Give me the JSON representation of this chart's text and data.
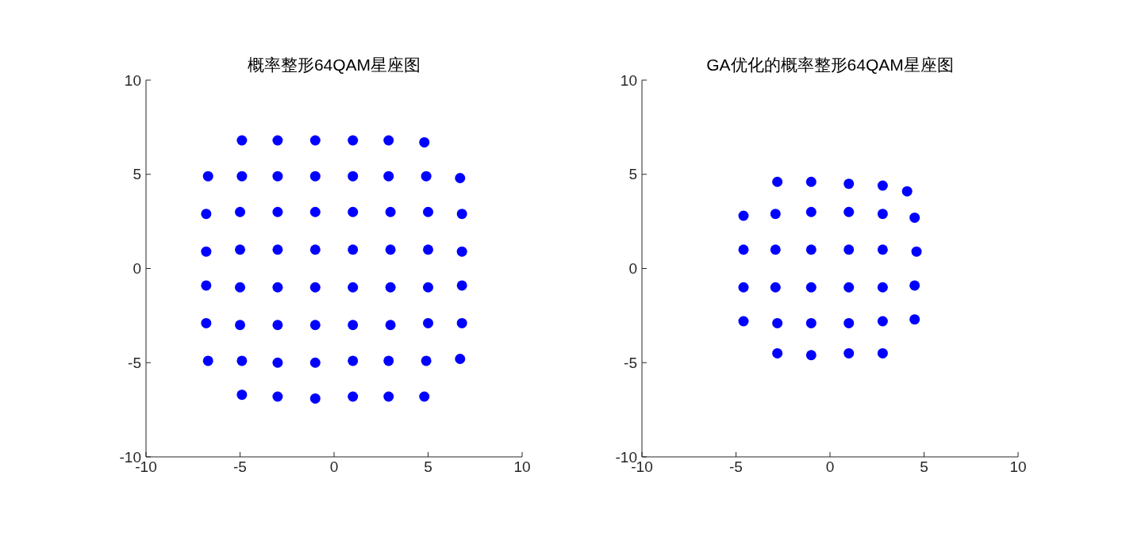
{
  "chart_data": [
    {
      "type": "scatter",
      "title": "概率整形64QAM星座图",
      "xlim": [
        -10,
        10
      ],
      "ylim": [
        -10,
        10
      ],
      "xticks": [
        -10,
        -5,
        0,
        5,
        10
      ],
      "yticks": [
        -10,
        -5,
        0,
        5,
        10
      ],
      "marker": "circle",
      "series": [
        {
          "color": "#0000ff",
          "x": [
            -4.9,
            -3,
            -1,
            1,
            2.9,
            4.8,
            -6.7,
            -4.9,
            -3,
            -1,
            1,
            2.9,
            4.9,
            6.7,
            -6.8,
            -5,
            -3,
            -1,
            1,
            3,
            5,
            6.8,
            -6.8,
            -5,
            -3,
            -1,
            1,
            3,
            5,
            6.8,
            -6.8,
            -5,
            -3,
            -1,
            1,
            3,
            5,
            6.8,
            -6.8,
            -5,
            -3,
            -1,
            1,
            3,
            5,
            6.8,
            -6.7,
            -4.9,
            -3,
            -1,
            1,
            2.9,
            4.9,
            6.7,
            -4.9,
            -3,
            -1,
            1,
            2.9,
            4.8
          ],
          "values": [
            6.8,
            6.8,
            6.8,
            6.8,
            6.8,
            6.7,
            4.9,
            4.9,
            4.9,
            4.9,
            4.9,
            4.9,
            4.9,
            4.8,
            2.9,
            3,
            3,
            3,
            3,
            3,
            3,
            2.9,
            0.9,
            1,
            1,
            1,
            1,
            1,
            1,
            0.9,
            -0.9,
            -1,
            -1,
            -1,
            -1,
            -1,
            -1,
            -0.9,
            -2.9,
            -3,
            -3,
            -3,
            -3,
            -3,
            -2.9,
            -2.9,
            -4.9,
            -4.9,
            -5,
            -5,
            -4.9,
            -4.9,
            -4.9,
            -4.8,
            -6.7,
            -6.8,
            -6.9,
            -6.8,
            -6.8,
            -6.8
          ]
        }
      ]
    },
    {
      "type": "scatter",
      "title": "GA优化的概率整形64QAM星座图",
      "xlim": [
        -10,
        10
      ],
      "ylim": [
        -10,
        10
      ],
      "xticks": [
        -10,
        -5,
        0,
        5,
        10
      ],
      "yticks": [
        -10,
        -5,
        0,
        5,
        10
      ],
      "marker": "circle",
      "series": [
        {
          "color": "#0000ff",
          "x": [
            -2.8,
            -1,
            1,
            2.8,
            4.1,
            -4.6,
            -2.9,
            -1,
            1,
            2.8,
            4.5,
            -4.6,
            -2.9,
            -1,
            1,
            2.8,
            4.6,
            -4.6,
            -2.9,
            -1,
            1,
            2.8,
            4.5,
            -4.6,
            -2.8,
            -1,
            1,
            2.8,
            4.5,
            -2.8,
            -1,
            1,
            2.8
          ],
          "values": [
            4.6,
            4.6,
            4.5,
            4.4,
            4.1,
            2.8,
            2.9,
            3,
            3,
            2.9,
            2.7,
            1,
            1,
            1,
            1,
            1,
            0.9,
            -1,
            -1,
            -1,
            -1,
            -1,
            -0.9,
            -2.8,
            -2.9,
            -2.9,
            -2.9,
            -2.8,
            -2.7,
            -4.5,
            -4.6,
            -4.5,
            -4.5
          ]
        }
      ]
    }
  ]
}
